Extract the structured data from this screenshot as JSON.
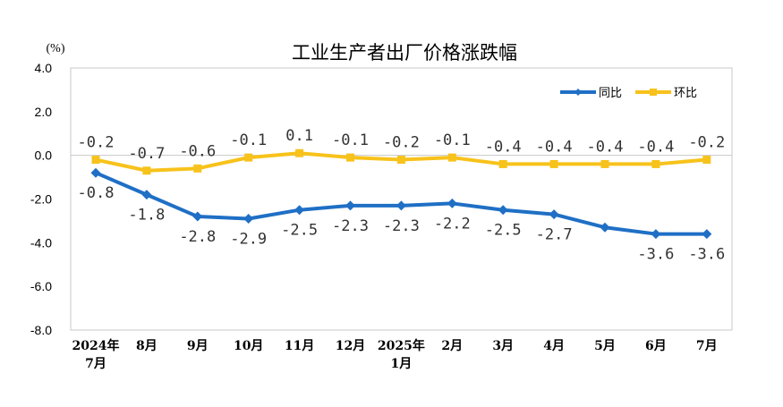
{
  "chart_data": {
    "type": "line",
    "title": "工业生产者出厂价格涨跌幅",
    "unit_label": "(%)",
    "categories": [
      [
        "2024年",
        "7月"
      ],
      [
        "8月"
      ],
      [
        "9月"
      ],
      [
        "10月"
      ],
      [
        "11月"
      ],
      [
        "12月"
      ],
      [
        "2025年",
        "1月"
      ],
      [
        "2月"
      ],
      [
        "3月"
      ],
      [
        "4月"
      ],
      [
        "5月"
      ],
      [
        "6月"
      ],
      [
        "7月"
      ]
    ],
    "ylim": [
      -8.0,
      4.0
    ],
    "yticks": [
      "4.0",
      "2.0",
      "0.0",
      "-2.0",
      "-4.0",
      "-6.0",
      "-8.0"
    ],
    "ytick_values": [
      4,
      2,
      0,
      -2,
      -4,
      -6,
      -8
    ],
    "legend_position": "top-right",
    "series": [
      {
        "name": "同比",
        "color": "#1f6fc5",
        "marker": "diamond",
        "values": [
          -0.8,
          -1.8,
          -2.8,
          -2.9,
          -2.5,
          -2.3,
          -2.3,
          -2.2,
          -2.5,
          -2.7,
          -3.3,
          -3.6,
          -3.6
        ],
        "labels": [
          "-0.8",
          "-1.8",
          "-2.8",
          "-2.9",
          "-2.5",
          "-2.3",
          "-2.3",
          "-2.2",
          "-2.5",
          "-2.7",
          "",
          "-3.6",
          "-3.6"
        ]
      },
      {
        "name": "环比",
        "color": "#f7c21b",
        "marker": "square",
        "values": [
          -0.2,
          -0.7,
          -0.6,
          -0.1,
          0.1,
          -0.1,
          -0.2,
          -0.1,
          -0.4,
          -0.4,
          -0.4,
          -0.4,
          -0.2
        ],
        "labels": [
          "-0.2",
          "-0.7",
          "-0.6",
          "-0.1",
          "0.1",
          "-0.1",
          "-0.2",
          "-0.1",
          "-0.4",
          "-0.4",
          "-0.4",
          "-0.4",
          "-0.2"
        ]
      }
    ],
    "grid": false
  }
}
